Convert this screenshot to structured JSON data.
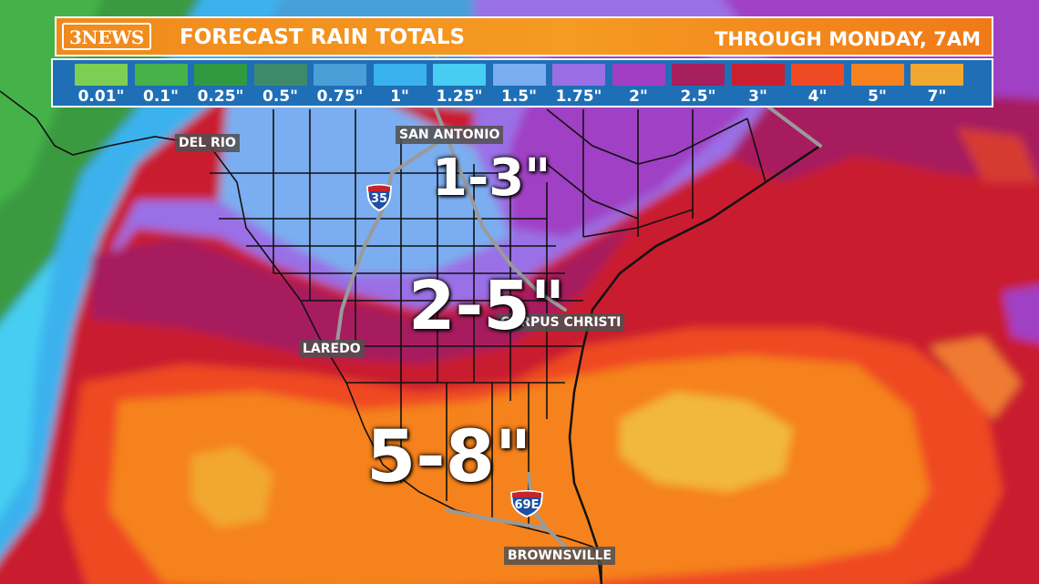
{
  "header": {
    "logo": "3NEWS",
    "title": "FORECAST RAIN TOTALS",
    "subtitle": "THROUGH MONDAY, 7AM"
  },
  "legend": [
    {
      "label": "0.01\"",
      "color": "#7ccf52"
    },
    {
      "label": "0.1\"",
      "color": "#45b24a"
    },
    {
      "label": "0.25\"",
      "color": "#2f9a3f"
    },
    {
      "label": "0.5\"",
      "color": "#3c8a6a"
    },
    {
      "label": "0.75\"",
      "color": "#4a9fd9"
    },
    {
      "label": "1\"",
      "color": "#3ab2ee"
    },
    {
      "label": "1.25\"",
      "color": "#47cdf2"
    },
    {
      "label": "1.5\"",
      "color": "#7aaef0"
    },
    {
      "label": "1.75\"",
      "color": "#9a6fe6"
    },
    {
      "label": "2\"",
      "color": "#a03fc4"
    },
    {
      "label": "2.5\"",
      "color": "#a61f5e"
    },
    {
      "label": "3\"",
      "color": "#c91f2e"
    },
    {
      "label": "4\"",
      "color": "#ef4a23"
    },
    {
      "label": "5\"",
      "color": "#f5821f"
    },
    {
      "label": "7\"",
      "color": "#f2a72e"
    }
  ],
  "cities": {
    "del_rio": "DEL RIO",
    "san_antonio": "SAN ANTONIO",
    "laredo": "LAREDO",
    "corpus_christi": "CORPUS CHRISTI",
    "brownsville": "BROWNSVILLE"
  },
  "totals": {
    "north": "1-3\"",
    "middle": "2-5\"",
    "south": "5-8\""
  },
  "shields": {
    "i35": "35",
    "i69e": "69E"
  },
  "colors": {
    "header_orange": "#f59a22",
    "legend_blue": "#1f6fb6",
    "city_label_bg": "#505050"
  }
}
